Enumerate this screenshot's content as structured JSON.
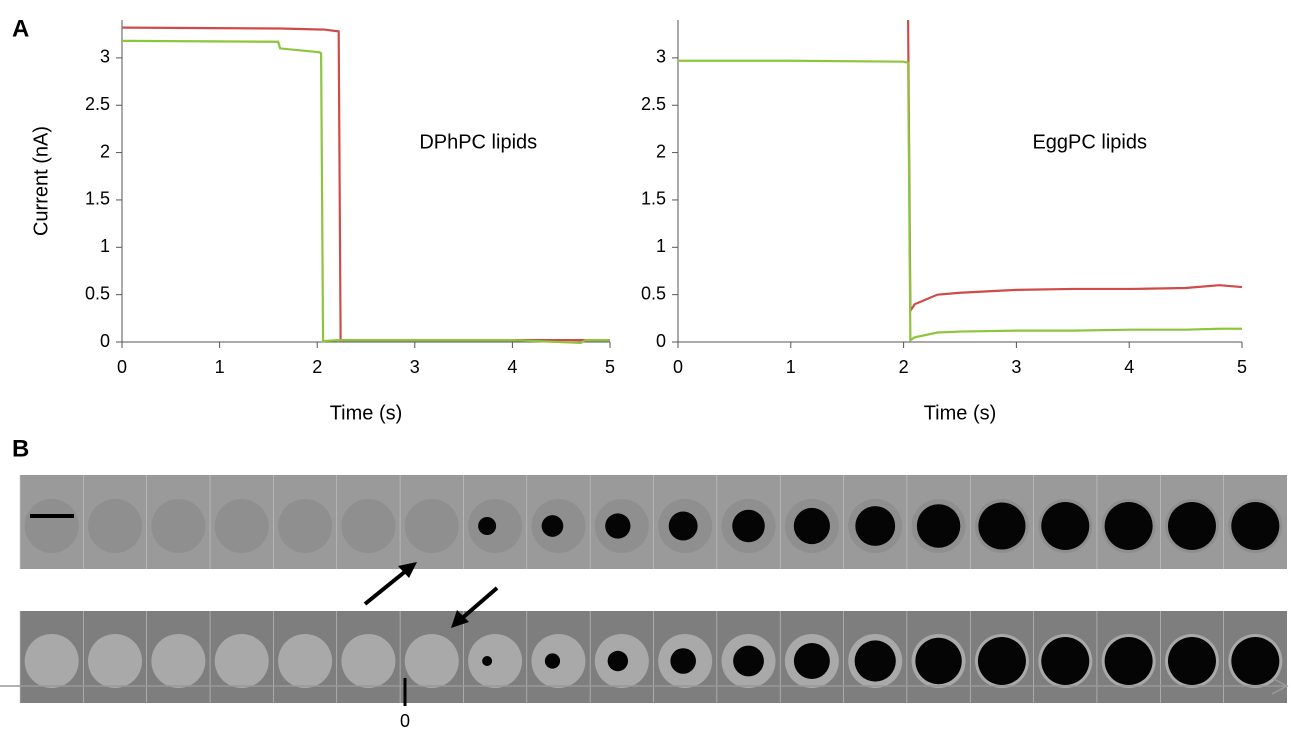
{
  "panel_labels": [
    "A",
    "B"
  ],
  "timeline_label": "0",
  "chart_data": [
    {
      "type": "line",
      "annotation": "DPhPC lipids",
      "ylabel": "Current (nA)",
      "xlabel": "Time (s)",
      "x": [
        0,
        1.6,
        1.62,
        2.02,
        2.04,
        2.06,
        2.22,
        2.24,
        3,
        4,
        4.7,
        4.75,
        5
      ],
      "series": [
        {
          "color": "#d04a4a",
          "values": [
            3.32,
            3.31,
            3.31,
            3.3,
            3.3,
            3.3,
            3.28,
            0.02,
            0.02,
            0.02,
            0.02,
            0.02,
            0.02
          ]
        },
        {
          "color": "#8cc63e",
          "values": [
            3.18,
            3.17,
            3.1,
            3.06,
            3.05,
            0.01,
            0.02,
            0.02,
            0.02,
            0.02,
            -0.01,
            0.02,
            0.02
          ]
        }
      ],
      "xlim": [
        0,
        5
      ],
      "ylim": [
        0,
        3.4
      ],
      "xticks": [
        0,
        1,
        2,
        3,
        4,
        5
      ],
      "yticks": [
        0,
        0.5,
        1,
        1.5,
        2,
        2.5,
        3
      ]
    },
    {
      "type": "line",
      "annotation": "EggPC lipids",
      "xlabel": "Time (s)",
      "x": [
        0,
        1,
        2,
        2.04,
        2.06,
        2.1,
        2.3,
        2.5,
        3,
        3.5,
        4,
        4.5,
        4.8,
        5
      ],
      "series": [
        {
          "color": "#d04a4a",
          "values": [
            null,
            null,
            null,
            3.4,
            0.33,
            0.4,
            0.5,
            0.52,
            0.55,
            0.56,
            0.56,
            0.57,
            0.6,
            0.58
          ]
        },
        {
          "color": "#8cc63e",
          "values": [
            2.97,
            2.97,
            2.96,
            2.95,
            0.02,
            0.05,
            0.1,
            0.11,
            0.12,
            0.12,
            0.13,
            0.13,
            0.14,
            0.14
          ]
        }
      ],
      "xlim": [
        0,
        5
      ],
      "ylim": [
        0,
        3.4
      ],
      "xticks": [
        0,
        1,
        2,
        3,
        4,
        5
      ],
      "yticks": [
        0,
        0.5,
        1,
        1.5,
        2,
        2.5,
        3
      ]
    }
  ]
}
